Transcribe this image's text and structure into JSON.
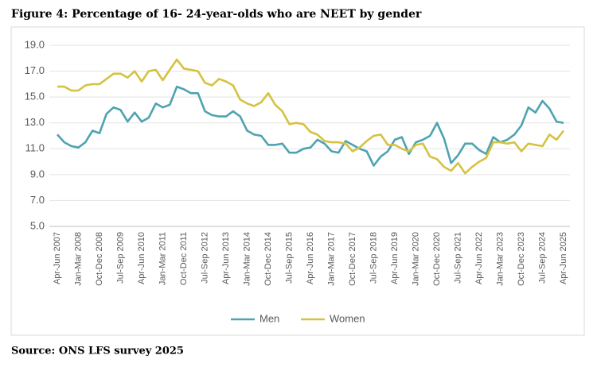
{
  "chart_data": {
    "type": "line",
    "title": "Figure 4: Percentage of 16- 24-year-olds who are NEET by gender",
    "source": "Source: ONS LFS survey 2025",
    "categories": [
      "Apr-Jun 2007",
      null,
      null,
      "Jan-Mar 2008",
      null,
      null,
      "Oct-Dec 2008",
      null,
      null,
      "Jul-Sep 2009",
      null,
      null,
      "Apr-Jun 2010",
      null,
      null,
      "Jan-Mar 2011",
      null,
      null,
      "Oct-Dec 2011",
      null,
      null,
      "Jul-Sep 2012",
      null,
      null,
      "Apr-Jun 2013",
      null,
      null,
      "Jan-Mar 2014",
      null,
      null,
      "Oct-Dec 2014",
      null,
      null,
      "Jul-Sep 2015",
      null,
      null,
      "Apr-Jun 2016",
      null,
      null,
      "Jan-Mar 2017",
      null,
      null,
      "Oct-Dec 2017",
      null,
      null,
      "Jul-Sep 2018",
      null,
      null,
      "Apr-Jun 2019",
      null,
      null,
      "Jan-Mar 2020",
      null,
      null,
      "Oct-Dec 2020",
      null,
      null,
      "Jul-Sep 2021",
      null,
      null,
      "Apr-Jun 2022",
      null,
      null,
      "Jan-Mar 2023",
      null,
      null,
      "Oct-Dec 2023",
      null,
      null,
      "Jul-Sep 2024",
      null,
      null,
      "Apr-Jun 2025"
    ],
    "series": [
      {
        "name": "Men",
        "color": "#4ea3b0",
        "values": [
          12.1,
          11.5,
          11.2,
          11.1,
          11.5,
          12.4,
          12.2,
          13.7,
          14.2,
          14.0,
          13.1,
          13.8,
          13.1,
          13.4,
          14.5,
          14.2,
          14.4,
          15.8,
          15.6,
          15.3,
          15.3,
          13.9,
          13.6,
          13.5,
          13.5,
          13.9,
          13.5,
          12.4,
          12.1,
          12.0,
          11.3,
          11.3,
          11.4,
          10.7,
          10.7,
          11.0,
          11.1,
          11.7,
          11.4,
          10.8,
          10.7,
          11.6,
          11.3,
          11.0,
          10.8,
          9.7,
          10.4,
          10.8,
          11.7,
          11.9,
          10.6,
          11.5,
          11.7,
          12.0,
          13.0,
          11.8,
          9.9,
          10.5,
          11.4,
          11.4,
          10.9,
          10.6,
          11.9,
          11.5,
          11.7,
          12.1,
          12.8,
          14.2,
          13.8,
          14.7,
          14.1,
          13.1,
          13.0
        ]
      },
      {
        "name": "Women",
        "color": "#d5c242",
        "values": [
          15.8,
          15.8,
          15.5,
          15.5,
          15.9,
          16.0,
          16.0,
          16.4,
          16.8,
          16.8,
          16.5,
          17.0,
          16.2,
          17.0,
          17.1,
          16.3,
          17.1,
          17.9,
          17.2,
          17.1,
          17.0,
          16.1,
          15.9,
          16.4,
          16.2,
          15.9,
          14.8,
          14.5,
          14.3,
          14.6,
          15.3,
          14.4,
          13.9,
          12.9,
          13.0,
          12.9,
          12.3,
          12.1,
          11.6,
          11.5,
          11.5,
          11.4,
          10.8,
          11.1,
          11.6,
          12.0,
          12.1,
          11.3,
          11.3,
          11.0,
          10.8,
          11.3,
          11.4,
          10.4,
          10.2,
          9.6,
          9.3,
          9.9,
          9.1,
          9.6,
          10.0,
          10.3,
          11.5,
          11.5,
          11.4,
          11.5,
          10.8,
          11.4,
          11.3,
          11.2,
          12.1,
          11.7,
          12.4
        ]
      }
    ],
    "ylim": [
      5,
      19
    ],
    "yticks": [
      {
        "value": 5,
        "label": "5.0"
      },
      {
        "value": 7,
        "label": "7.0"
      },
      {
        "value": 9,
        "label": "9.0"
      },
      {
        "value": 11,
        "label": "11.0"
      },
      {
        "value": 13,
        "label": "13.0"
      },
      {
        "value": 15,
        "label": "15.0"
      },
      {
        "value": 17,
        "label": "17.0"
      },
      {
        "value": 19,
        "label": "19.0"
      }
    ],
    "grid": true,
    "legend": "bottom"
  }
}
